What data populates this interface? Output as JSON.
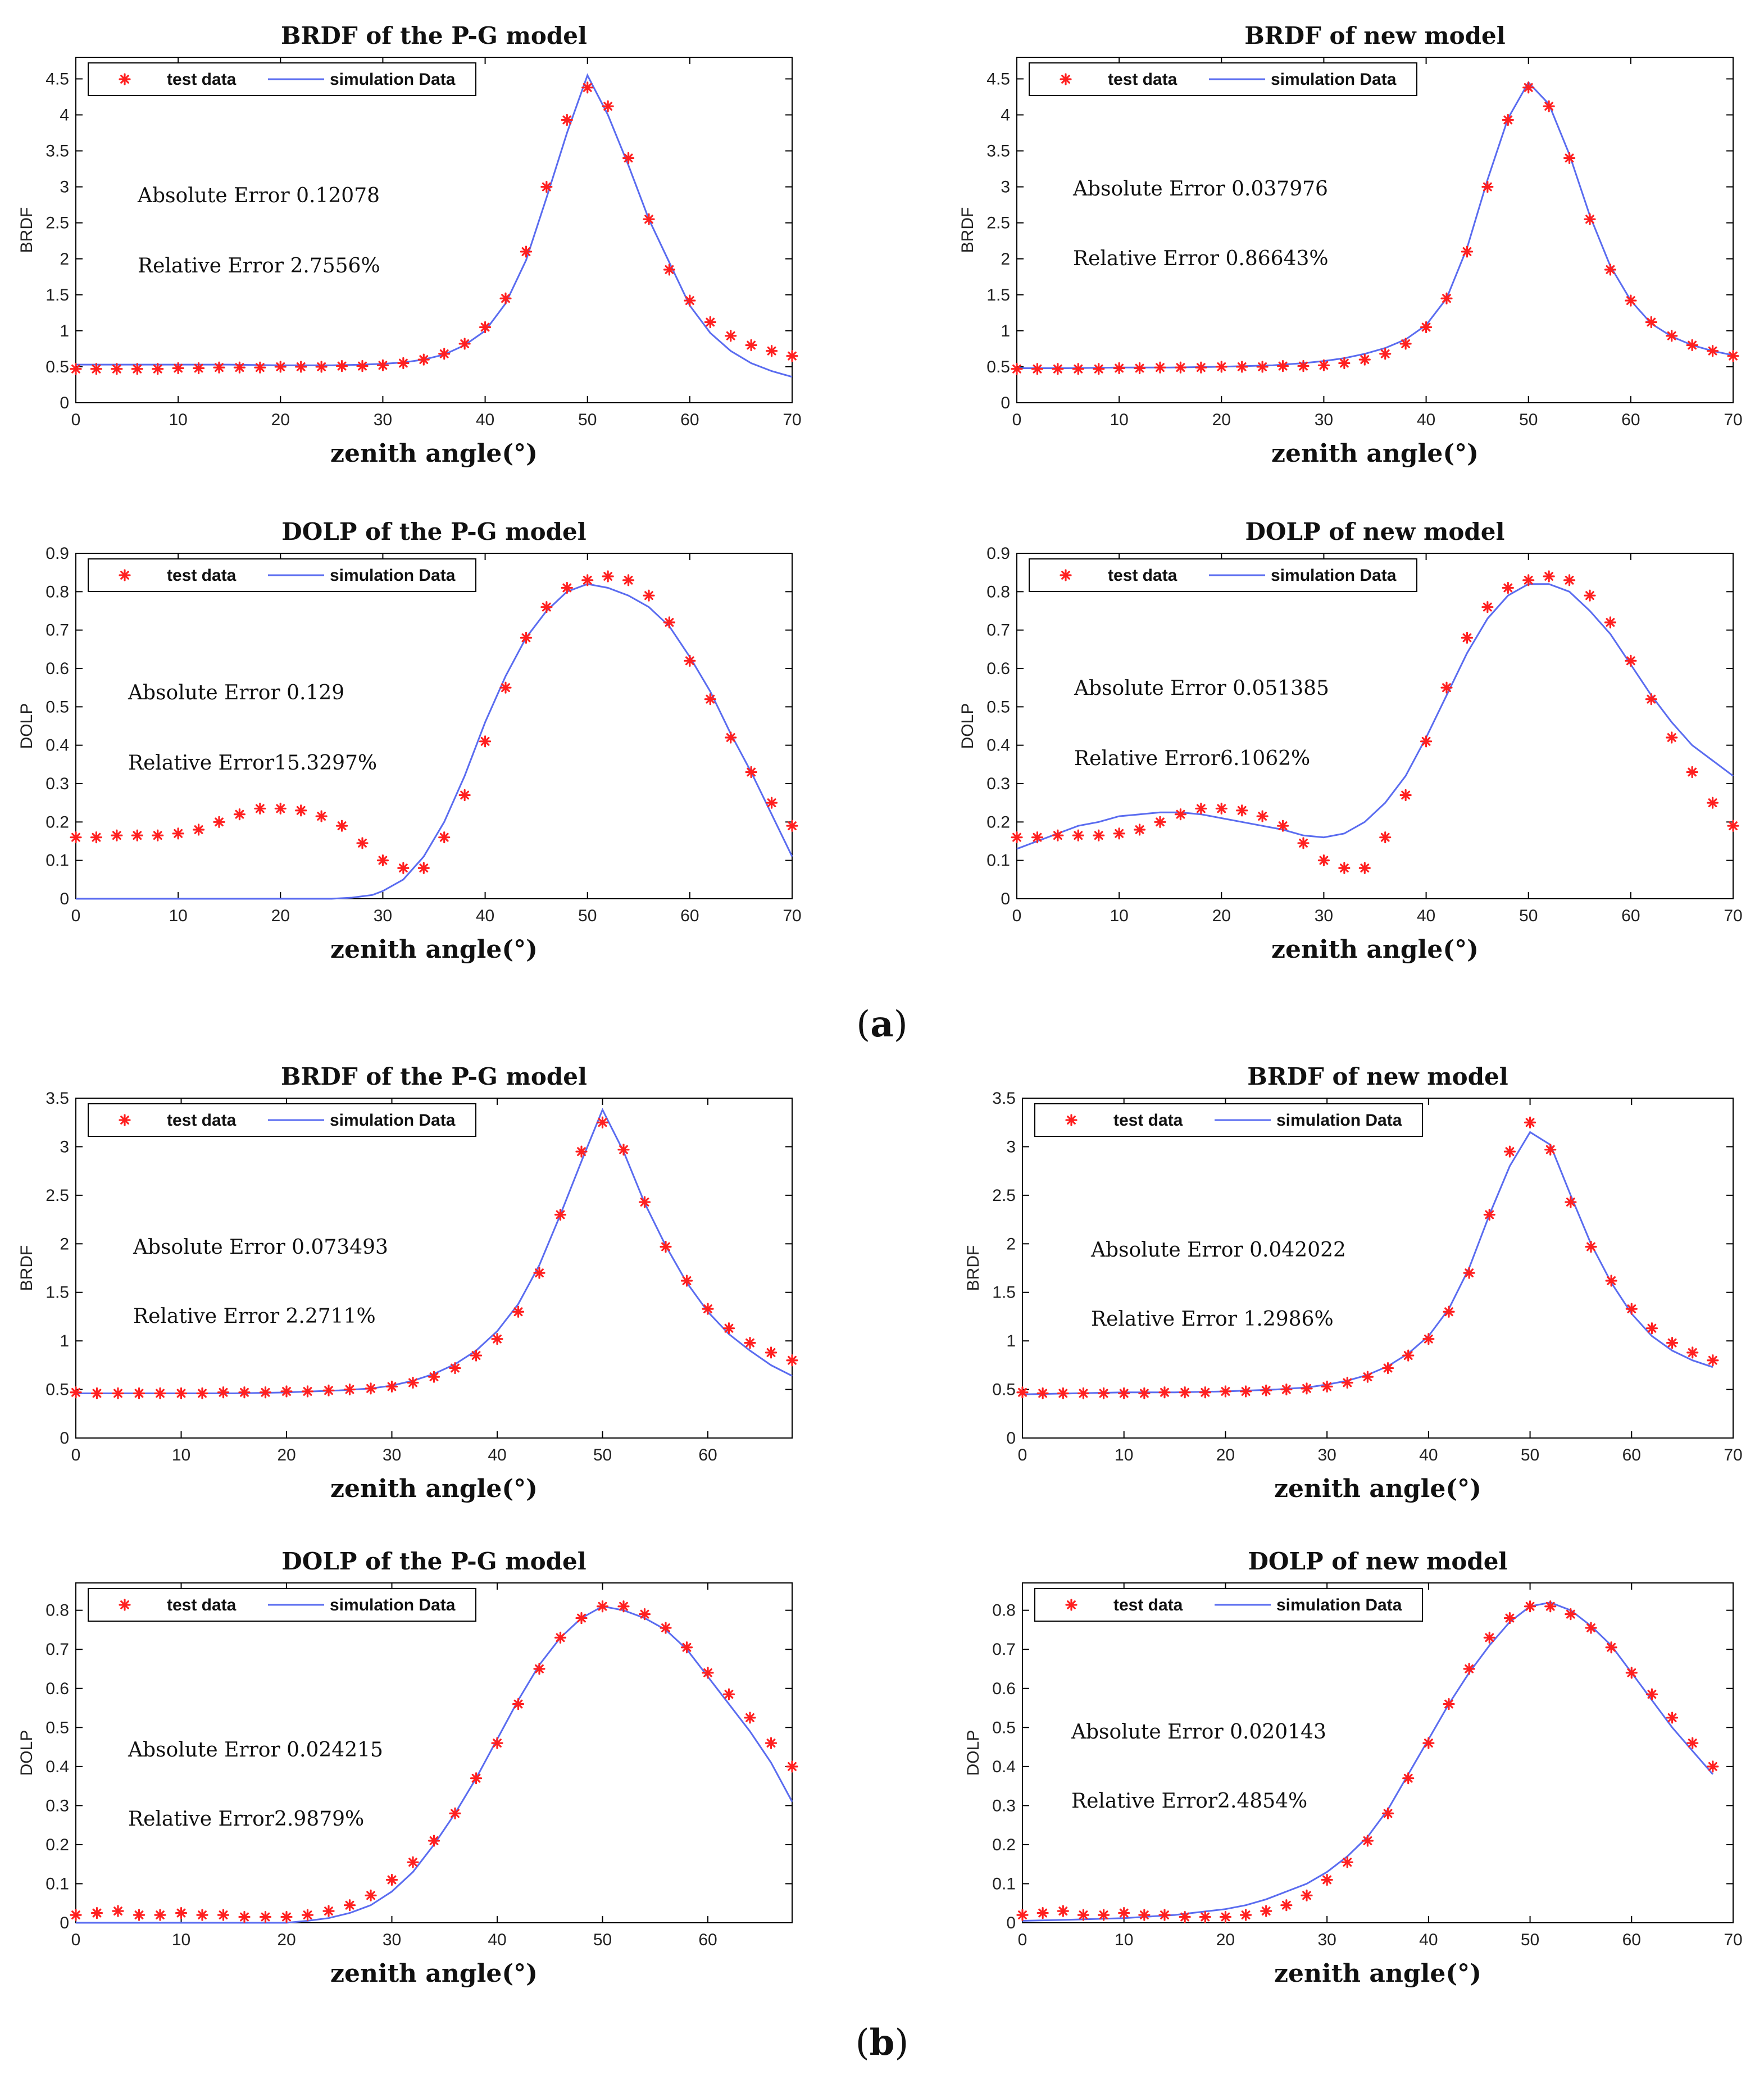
{
  "panel_labels": [
    {
      "open": "(",
      "letter": "a",
      "close": ")"
    },
    {
      "open": "(",
      "letter": "b",
      "close": ")"
    }
  ],
  "legend": {
    "test": "test data",
    "sim": "simulation Data"
  },
  "colors": {
    "test": "#ff2020",
    "sim": "#5a6cf0"
  },
  "chart_data": [
    {
      "type": "scatter+line",
      "group": "a",
      "title": "BRDF of the P-G model",
      "xlabel": "zenith angle(°)",
      "ylabel": "BRDF",
      "xlim": [
        0,
        70
      ],
      "ylim": [
        0,
        4.8
      ],
      "xticks": [
        0,
        10,
        20,
        30,
        40,
        50,
        60,
        70
      ],
      "yticks": [
        0,
        0.5,
        1,
        1.5,
        2,
        2.5,
        3,
        3.5,
        4,
        4.5
      ],
      "annotations": [
        "Absolute Error 0.12078",
        "Relative Error 2.7556%"
      ],
      "test_x": [
        0,
        2,
        4,
        6,
        8,
        10,
        12,
        14,
        16,
        18,
        20,
        22,
        24,
        26,
        28,
        30,
        32,
        34,
        36,
        38,
        40,
        42,
        44,
        46,
        48,
        50,
        52,
        54,
        56,
        58,
        60,
        62,
        64,
        66,
        68,
        70
      ],
      "test_y": [
        0.47,
        0.47,
        0.47,
        0.47,
        0.47,
        0.48,
        0.48,
        0.49,
        0.49,
        0.49,
        0.5,
        0.5,
        0.5,
        0.51,
        0.51,
        0.52,
        0.55,
        0.6,
        0.68,
        0.82,
        1.05,
        1.45,
        2.1,
        3.0,
        3.93,
        4.38,
        4.12,
        3.4,
        2.55,
        1.85,
        1.42,
        1.12,
        0.93,
        0.8,
        0.72,
        0.65
      ],
      "sim_x": [
        0,
        5,
        10,
        15,
        20,
        25,
        28,
        30,
        32,
        34,
        36,
        38,
        40,
        42,
        44,
        46,
        48,
        50,
        52,
        54,
        56,
        58,
        60,
        62,
        64,
        66,
        68,
        70
      ],
      "sim_y": [
        0.53,
        0.53,
        0.53,
        0.53,
        0.52,
        0.52,
        0.53,
        0.54,
        0.56,
        0.6,
        0.67,
        0.8,
        1.0,
        1.38,
        1.98,
        2.85,
        3.75,
        4.55,
        4.0,
        3.3,
        2.55,
        1.95,
        1.35,
        0.97,
        0.72,
        0.55,
        0.44,
        0.36
      ]
    },
    {
      "type": "scatter+line",
      "group": "a",
      "title": "BRDF of new model",
      "xlabel": "zenith angle(°)",
      "ylabel": "BRDF",
      "xlim": [
        0,
        70
      ],
      "ylim": [
        0,
        4.8
      ],
      "xticks": [
        0,
        10,
        20,
        30,
        40,
        50,
        60,
        70
      ],
      "yticks": [
        0,
        0.5,
        1,
        1.5,
        2,
        2.5,
        3,
        3.5,
        4,
        4.5
      ],
      "annotations": [
        "Absolute Error 0.037976",
        "Relative Error 0.86643%"
      ],
      "test_x": [
        0,
        2,
        4,
        6,
        8,
        10,
        12,
        14,
        16,
        18,
        20,
        22,
        24,
        26,
        28,
        30,
        32,
        34,
        36,
        38,
        40,
        42,
        44,
        46,
        48,
        50,
        52,
        54,
        56,
        58,
        60,
        62,
        64,
        66,
        68,
        70
      ],
      "test_y": [
        0.47,
        0.47,
        0.47,
        0.47,
        0.47,
        0.48,
        0.48,
        0.49,
        0.49,
        0.49,
        0.5,
        0.5,
        0.5,
        0.51,
        0.51,
        0.52,
        0.55,
        0.6,
        0.68,
        0.82,
        1.05,
        1.45,
        2.1,
        3.0,
        3.93,
        4.38,
        4.12,
        3.4,
        2.55,
        1.85,
        1.42,
        1.12,
        0.93,
        0.8,
        0.72,
        0.65
      ],
      "sim_x": [
        0,
        5,
        10,
        15,
        20,
        25,
        28,
        30,
        32,
        34,
        36,
        38,
        40,
        42,
        44,
        46,
        48,
        50,
        52,
        54,
        56,
        58,
        60,
        62,
        64,
        66,
        68,
        70
      ],
      "sim_y": [
        0.48,
        0.48,
        0.49,
        0.49,
        0.5,
        0.52,
        0.55,
        0.58,
        0.62,
        0.68,
        0.76,
        0.88,
        1.08,
        1.45,
        2.15,
        3.1,
        3.95,
        4.45,
        4.15,
        3.45,
        2.6,
        1.9,
        1.42,
        1.1,
        0.92,
        0.8,
        0.72,
        0.66
      ]
    },
    {
      "type": "scatter+line",
      "group": "a",
      "title": "DOLP of the P-G model",
      "xlabel": "zenith angle(°)",
      "ylabel": "DOLP",
      "xlim": [
        0,
        70
      ],
      "ylim": [
        0,
        0.9
      ],
      "xticks": [
        0,
        10,
        20,
        30,
        40,
        50,
        60,
        70
      ],
      "yticks": [
        0,
        0.1,
        0.2,
        0.3,
        0.4,
        0.5,
        0.6,
        0.7,
        0.8,
        0.9
      ],
      "annotations": [
        "Absolute Error 0.129",
        "Relative Error15.3297%"
      ],
      "test_x": [
        0,
        2,
        4,
        6,
        8,
        10,
        12,
        14,
        16,
        18,
        20,
        22,
        24,
        26,
        28,
        30,
        32,
        34,
        36,
        38,
        40,
        42,
        44,
        46,
        48,
        50,
        52,
        54,
        56,
        58,
        60,
        62,
        64,
        66,
        68,
        70
      ],
      "test_y": [
        0.16,
        0.16,
        0.165,
        0.165,
        0.165,
        0.17,
        0.18,
        0.2,
        0.22,
        0.235,
        0.235,
        0.23,
        0.215,
        0.19,
        0.145,
        0.1,
        0.08,
        0.08,
        0.16,
        0.27,
        0.41,
        0.55,
        0.68,
        0.76,
        0.81,
        0.83,
        0.84,
        0.83,
        0.79,
        0.72,
        0.62,
        0.52,
        0.42,
        0.33,
        0.25,
        0.19
      ],
      "sim_x": [
        0,
        10,
        20,
        25,
        27,
        29,
        30,
        32,
        34,
        36,
        38,
        40,
        42,
        44,
        46,
        48,
        50,
        52,
        54,
        56,
        58,
        60,
        62,
        64,
        66,
        68,
        70
      ],
      "sim_y": [
        0,
        0,
        0,
        0,
        0.003,
        0.01,
        0.02,
        0.05,
        0.11,
        0.2,
        0.32,
        0.46,
        0.58,
        0.68,
        0.75,
        0.8,
        0.82,
        0.81,
        0.79,
        0.76,
        0.71,
        0.63,
        0.54,
        0.43,
        0.33,
        0.22,
        0.11
      ]
    },
    {
      "type": "scatter+line",
      "group": "a",
      "title": "DOLP of new model",
      "xlabel": "zenith angle(°)",
      "ylabel": "DOLP",
      "xlim": [
        0,
        70
      ],
      "ylim": [
        0,
        0.9
      ],
      "xticks": [
        0,
        10,
        20,
        30,
        40,
        50,
        60,
        70
      ],
      "yticks": [
        0,
        0.1,
        0.2,
        0.3,
        0.4,
        0.5,
        0.6,
        0.7,
        0.8,
        0.9
      ],
      "annotations": [
        "Absolute Error 0.051385",
        "Relative Error6.1062%"
      ],
      "test_x": [
        0,
        2,
        4,
        6,
        8,
        10,
        12,
        14,
        16,
        18,
        20,
        22,
        24,
        26,
        28,
        30,
        32,
        34,
        36,
        38,
        40,
        42,
        44,
        46,
        48,
        50,
        52,
        54,
        56,
        58,
        60,
        62,
        64,
        66,
        68,
        70
      ],
      "test_y": [
        0.16,
        0.16,
        0.165,
        0.165,
        0.165,
        0.17,
        0.18,
        0.2,
        0.22,
        0.235,
        0.235,
        0.23,
        0.215,
        0.19,
        0.145,
        0.1,
        0.08,
        0.08,
        0.16,
        0.27,
        0.41,
        0.55,
        0.68,
        0.76,
        0.81,
        0.83,
        0.84,
        0.83,
        0.79,
        0.72,
        0.62,
        0.52,
        0.42,
        0.33,
        0.25,
        0.19
      ],
      "sim_x": [
        0,
        2,
        4,
        6,
        8,
        10,
        12,
        14,
        16,
        18,
        20,
        22,
        24,
        26,
        28,
        30,
        32,
        34,
        36,
        38,
        40,
        42,
        44,
        46,
        48,
        50,
        52,
        54,
        56,
        58,
        60,
        62,
        64,
        66,
        68,
        70
      ],
      "sim_y": [
        0.13,
        0.15,
        0.17,
        0.19,
        0.2,
        0.215,
        0.22,
        0.225,
        0.225,
        0.22,
        0.21,
        0.2,
        0.19,
        0.18,
        0.165,
        0.16,
        0.17,
        0.2,
        0.25,
        0.32,
        0.42,
        0.53,
        0.64,
        0.73,
        0.79,
        0.82,
        0.82,
        0.8,
        0.75,
        0.69,
        0.61,
        0.53,
        0.46,
        0.4,
        0.36,
        0.32
      ]
    },
    {
      "type": "scatter+line",
      "group": "b",
      "title": "BRDF of the P-G model",
      "xlabel": "zenith angle(°)",
      "ylabel": "BRDF",
      "xlim": [
        0,
        68
      ],
      "ylim": [
        0,
        3.5
      ],
      "xticks": [
        0,
        10,
        20,
        30,
        40,
        50,
        60
      ],
      "yticks": [
        0,
        0.5,
        1,
        1.5,
        2,
        2.5,
        3,
        3.5
      ],
      "annotations": [
        "Absolute Error 0.073493",
        "Relative Error 2.2711%"
      ],
      "test_x": [
        0,
        2,
        4,
        6,
        8,
        10,
        12,
        14,
        16,
        18,
        20,
        22,
        24,
        26,
        28,
        30,
        32,
        34,
        36,
        38,
        40,
        42,
        44,
        46,
        48,
        50,
        52,
        54,
        56,
        58,
        60,
        62,
        64,
        66,
        68
      ],
      "test_y": [
        0.47,
        0.46,
        0.46,
        0.46,
        0.46,
        0.46,
        0.46,
        0.47,
        0.47,
        0.47,
        0.48,
        0.48,
        0.49,
        0.5,
        0.51,
        0.53,
        0.57,
        0.63,
        0.72,
        0.85,
        1.02,
        1.3,
        1.7,
        2.3,
        2.95,
        3.25,
        2.97,
        2.43,
        1.97,
        1.62,
        1.33,
        1.13,
        0.98,
        0.88,
        0.8
      ],
      "sim_x": [
        0,
        5,
        10,
        15,
        20,
        25,
        28,
        30,
        32,
        34,
        36,
        38,
        40,
        42,
        44,
        46,
        48,
        50,
        52,
        54,
        56,
        58,
        60,
        62,
        64,
        66,
        68
      ],
      "sim_y": [
        0.46,
        0.46,
        0.46,
        0.46,
        0.47,
        0.49,
        0.51,
        0.54,
        0.59,
        0.66,
        0.76,
        0.9,
        1.1,
        1.38,
        1.78,
        2.3,
        2.85,
        3.38,
        2.95,
        2.42,
        1.98,
        1.6,
        1.3,
        1.07,
        0.9,
        0.75,
        0.64
      ]
    },
    {
      "type": "scatter+line",
      "group": "b",
      "title": "BRDF of new model",
      "xlabel": "zenith angle(°)",
      "ylabel": "BRDF",
      "xlim": [
        0,
        70
      ],
      "ylim": [
        0,
        3.5
      ],
      "xticks": [
        0,
        10,
        20,
        30,
        40,
        50,
        60,
        70
      ],
      "yticks": [
        0,
        0.5,
        1,
        1.5,
        2,
        2.5,
        3,
        3.5
      ],
      "annotations": [
        "Absolute Error 0.042022",
        "Relative Error 1.2986%"
      ],
      "test_x": [
        0,
        2,
        4,
        6,
        8,
        10,
        12,
        14,
        16,
        18,
        20,
        22,
        24,
        26,
        28,
        30,
        32,
        34,
        36,
        38,
        40,
        42,
        44,
        46,
        48,
        50,
        52,
        54,
        56,
        58,
        60,
        62,
        64,
        66,
        68
      ],
      "test_y": [
        0.47,
        0.46,
        0.46,
        0.46,
        0.46,
        0.46,
        0.46,
        0.47,
        0.47,
        0.47,
        0.48,
        0.48,
        0.49,
        0.5,
        0.51,
        0.53,
        0.57,
        0.63,
        0.72,
        0.85,
        1.02,
        1.3,
        1.7,
        2.3,
        2.95,
        3.25,
        2.97,
        2.43,
        1.97,
        1.62,
        1.33,
        1.13,
        0.98,
        0.88,
        0.8
      ],
      "sim_x": [
        0,
        5,
        10,
        15,
        20,
        25,
        28,
        30,
        32,
        34,
        36,
        38,
        40,
        42,
        44,
        46,
        48,
        50,
        52,
        54,
        56,
        58,
        60,
        62,
        64,
        66,
        68
      ],
      "sim_y": [
        0.45,
        0.46,
        0.47,
        0.47,
        0.48,
        0.5,
        0.52,
        0.55,
        0.59,
        0.65,
        0.74,
        0.87,
        1.05,
        1.33,
        1.75,
        2.3,
        2.8,
        3.15,
        3.02,
        2.5,
        2.0,
        1.6,
        1.28,
        1.05,
        0.9,
        0.8,
        0.73
      ]
    },
    {
      "type": "scatter+line",
      "group": "b",
      "title": "DOLP of the P-G model",
      "xlabel": "zenith angle(°)",
      "ylabel": "DOLP",
      "xlim": [
        0,
        68
      ],
      "ylim": [
        0,
        0.87
      ],
      "xticks": [
        0,
        10,
        20,
        30,
        40,
        50,
        60
      ],
      "yticks": [
        0,
        0.1,
        0.2,
        0.3,
        0.4,
        0.5,
        0.6,
        0.7,
        0.8
      ],
      "annotations": [
        "Absolute Error 0.024215",
        "Relative Error2.9879%"
      ],
      "test_x": [
        0,
        2,
        4,
        6,
        8,
        10,
        12,
        14,
        16,
        18,
        20,
        22,
        24,
        26,
        28,
        30,
        32,
        34,
        36,
        38,
        40,
        42,
        44,
        46,
        48,
        50,
        52,
        54,
        56,
        58,
        60,
        62,
        64,
        66,
        68
      ],
      "test_y": [
        0.02,
        0.025,
        0.03,
        0.02,
        0.02,
        0.025,
        0.02,
        0.02,
        0.015,
        0.015,
        0.015,
        0.02,
        0.03,
        0.045,
        0.07,
        0.11,
        0.155,
        0.21,
        0.28,
        0.37,
        0.46,
        0.56,
        0.65,
        0.73,
        0.78,
        0.81,
        0.81,
        0.79,
        0.755,
        0.705,
        0.64,
        0.585,
        0.525,
        0.46,
        0.4
      ],
      "sim_x": [
        0,
        10,
        20,
        22,
        24,
        26,
        28,
        30,
        32,
        34,
        36,
        38,
        40,
        42,
        44,
        46,
        48,
        50,
        52,
        54,
        56,
        58,
        60,
        62,
        64,
        66,
        68
      ],
      "sim_y": [
        0,
        0,
        0,
        0.005,
        0.012,
        0.025,
        0.045,
        0.08,
        0.13,
        0.2,
        0.28,
        0.37,
        0.47,
        0.57,
        0.66,
        0.73,
        0.78,
        0.81,
        0.8,
        0.78,
        0.75,
        0.7,
        0.63,
        0.56,
        0.49,
        0.41,
        0.31
      ]
    },
    {
      "type": "scatter+line",
      "group": "b",
      "title": "DOLP of new model",
      "xlabel": "zenith angle(°)",
      "ylabel": "DOLP",
      "xlim": [
        0,
        70
      ],
      "ylim": [
        0,
        0.87
      ],
      "xticks": [
        0,
        10,
        20,
        30,
        40,
        50,
        60,
        70
      ],
      "yticks": [
        0,
        0.1,
        0.2,
        0.3,
        0.4,
        0.5,
        0.6,
        0.7,
        0.8
      ],
      "annotations": [
        "Absolute Error 0.020143",
        "Relative Error2.4854%"
      ],
      "test_x": [
        0,
        2,
        4,
        6,
        8,
        10,
        12,
        14,
        16,
        18,
        20,
        22,
        24,
        26,
        28,
        30,
        32,
        34,
        36,
        38,
        40,
        42,
        44,
        46,
        48,
        50,
        52,
        54,
        56,
        58,
        60,
        62,
        64,
        66,
        68
      ],
      "test_y": [
        0.02,
        0.025,
        0.03,
        0.02,
        0.02,
        0.025,
        0.02,
        0.02,
        0.015,
        0.015,
        0.015,
        0.02,
        0.03,
        0.045,
        0.07,
        0.11,
        0.155,
        0.21,
        0.28,
        0.37,
        0.46,
        0.56,
        0.65,
        0.73,
        0.78,
        0.81,
        0.81,
        0.79,
        0.755,
        0.705,
        0.64,
        0.585,
        0.525,
        0.46,
        0.4
      ],
      "sim_x": [
        0,
        5,
        10,
        15,
        20,
        22,
        24,
        26,
        28,
        30,
        32,
        34,
        36,
        38,
        40,
        42,
        44,
        46,
        48,
        50,
        52,
        54,
        56,
        58,
        60,
        62,
        64,
        66,
        68
      ],
      "sim_y": [
        0.005,
        0.008,
        0.012,
        0.02,
        0.035,
        0.045,
        0.06,
        0.08,
        0.1,
        0.13,
        0.17,
        0.22,
        0.29,
        0.38,
        0.47,
        0.56,
        0.64,
        0.71,
        0.77,
        0.81,
        0.82,
        0.8,
        0.76,
        0.71,
        0.64,
        0.57,
        0.5,
        0.44,
        0.38
      ]
    }
  ]
}
